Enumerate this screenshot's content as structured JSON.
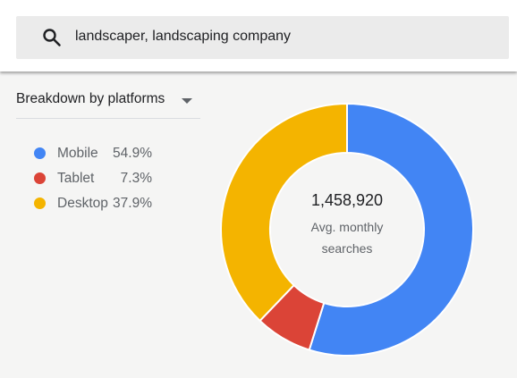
{
  "search": {
    "query": "landscaper, landscaping company"
  },
  "breakdown": {
    "label": "Breakdown by platforms"
  },
  "legend": [
    {
      "name": "Mobile",
      "pct": "54.9%",
      "color": "#4285f4"
    },
    {
      "name": "Tablet",
      "pct": "7.3%",
      "color": "#db4437"
    },
    {
      "name": "Desktop",
      "pct": "37.9%",
      "color": "#f4b400"
    }
  ],
  "center": {
    "total": "1,458,920",
    "caption_line1": "Avg. monthly",
    "caption_line2": "searches"
  },
  "chart_data": {
    "type": "pie",
    "categories": [
      "Mobile",
      "Tablet",
      "Desktop"
    ],
    "values": [
      54.9,
      7.3,
      37.9
    ],
    "colors": [
      "#4285f4",
      "#db4437",
      "#f4b400"
    ],
    "title": "",
    "legend": "left"
  }
}
